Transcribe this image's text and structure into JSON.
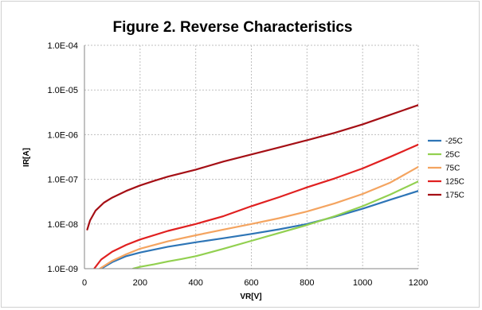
{
  "chart_data": {
    "type": "line",
    "title": "Figure 2. Reverse Characteristics",
    "xlabel": "VR[V]",
    "ylabel": "IR[A]",
    "x_scale": "linear",
    "y_scale": "log",
    "xlim": [
      0,
      1200
    ],
    "ylim": [
      1e-09,
      0.0001
    ],
    "x_ticks": [
      0,
      200,
      400,
      600,
      800,
      1000,
      1200
    ],
    "x_tick_labels": [
      "0",
      "200",
      "400",
      "600",
      "800",
      "1000",
      "1200"
    ],
    "y_ticks": [
      1e-09,
      1e-08,
      1e-07,
      1e-06,
      1e-05,
      0.0001
    ],
    "y_tick_labels": [
      "1.0E-09",
      "1.0E-08",
      "1.0E-07",
      "1.0E-06",
      "1.0E-05",
      "1.0E-04"
    ],
    "grid": "dashed",
    "legend_position": "right",
    "series": [
      {
        "name": "-25C",
        "color": "#2e75b6",
        "x": [
          60,
          100,
          150,
          200,
          300,
          400,
          500,
          600,
          700,
          800,
          900,
          1000,
          1100,
          1200
        ],
        "y": [
          1e-09,
          1.4e-09,
          1.9e-09,
          2.3e-09,
          3.1e-09,
          3.9e-09,
          4.8e-09,
          6e-09,
          7.6e-09,
          1e-08,
          1.45e-08,
          2.2e-08,
          3.5e-08,
          5.5e-08
        ]
      },
      {
        "name": "25C",
        "color": "#92d050",
        "x": [
          175,
          200,
          250,
          300,
          350,
          400,
          450,
          500,
          600,
          700,
          800,
          900,
          1000,
          1100,
          1200
        ],
        "y": [
          1e-09,
          1.1e-09,
          1.25e-09,
          1.45e-09,
          1.65e-09,
          1.9e-09,
          2.3e-09,
          2.8e-09,
          4.2e-09,
          6.3e-09,
          9.5e-09,
          1.5e-08,
          2.5e-08,
          4.6e-08,
          9e-08
        ]
      },
      {
        "name": "75C",
        "color": "#f4a460",
        "x": [
          55,
          100,
          150,
          200,
          300,
          400,
          500,
          600,
          700,
          800,
          900,
          1000,
          1100,
          1200
        ],
        "y": [
          1e-09,
          1.5e-09,
          2.1e-09,
          2.8e-09,
          4.1e-09,
          5.6e-09,
          7.5e-09,
          1e-08,
          1.35e-08,
          1.9e-08,
          2.9e-08,
          4.7e-08,
          8.5e-08,
          1.9e-07
        ]
      },
      {
        "name": "125C",
        "color": "#e02020",
        "x": [
          35,
          60,
          100,
          150,
          200,
          300,
          400,
          500,
          600,
          700,
          800,
          900,
          1000,
          1100,
          1200
        ],
        "y": [
          1e-09,
          1.6e-09,
          2.4e-09,
          3.4e-09,
          4.5e-09,
          7e-09,
          1e-08,
          1.5e-08,
          2.5e-08,
          4e-08,
          6.6e-08,
          1.05e-07,
          1.75e-07,
          3.2e-07,
          6e-07
        ]
      },
      {
        "name": "175C",
        "color": "#a50f15",
        "x": [
          10,
          20,
          40,
          70,
          100,
          150,
          200,
          250,
          300,
          400,
          500,
          600,
          700,
          800,
          900,
          1000,
          1100,
          1200
        ],
        "y": [
          7.5e-09,
          1.2e-08,
          2e-08,
          3e-08,
          3.9e-08,
          5.5e-08,
          7.3e-08,
          9.2e-08,
          1.15e-07,
          1.65e-07,
          2.5e-07,
          3.6e-07,
          5.2e-07,
          7.5e-07,
          1.1e-06,
          1.7e-06,
          2.8e-06,
          4.6e-06
        ]
      }
    ]
  }
}
